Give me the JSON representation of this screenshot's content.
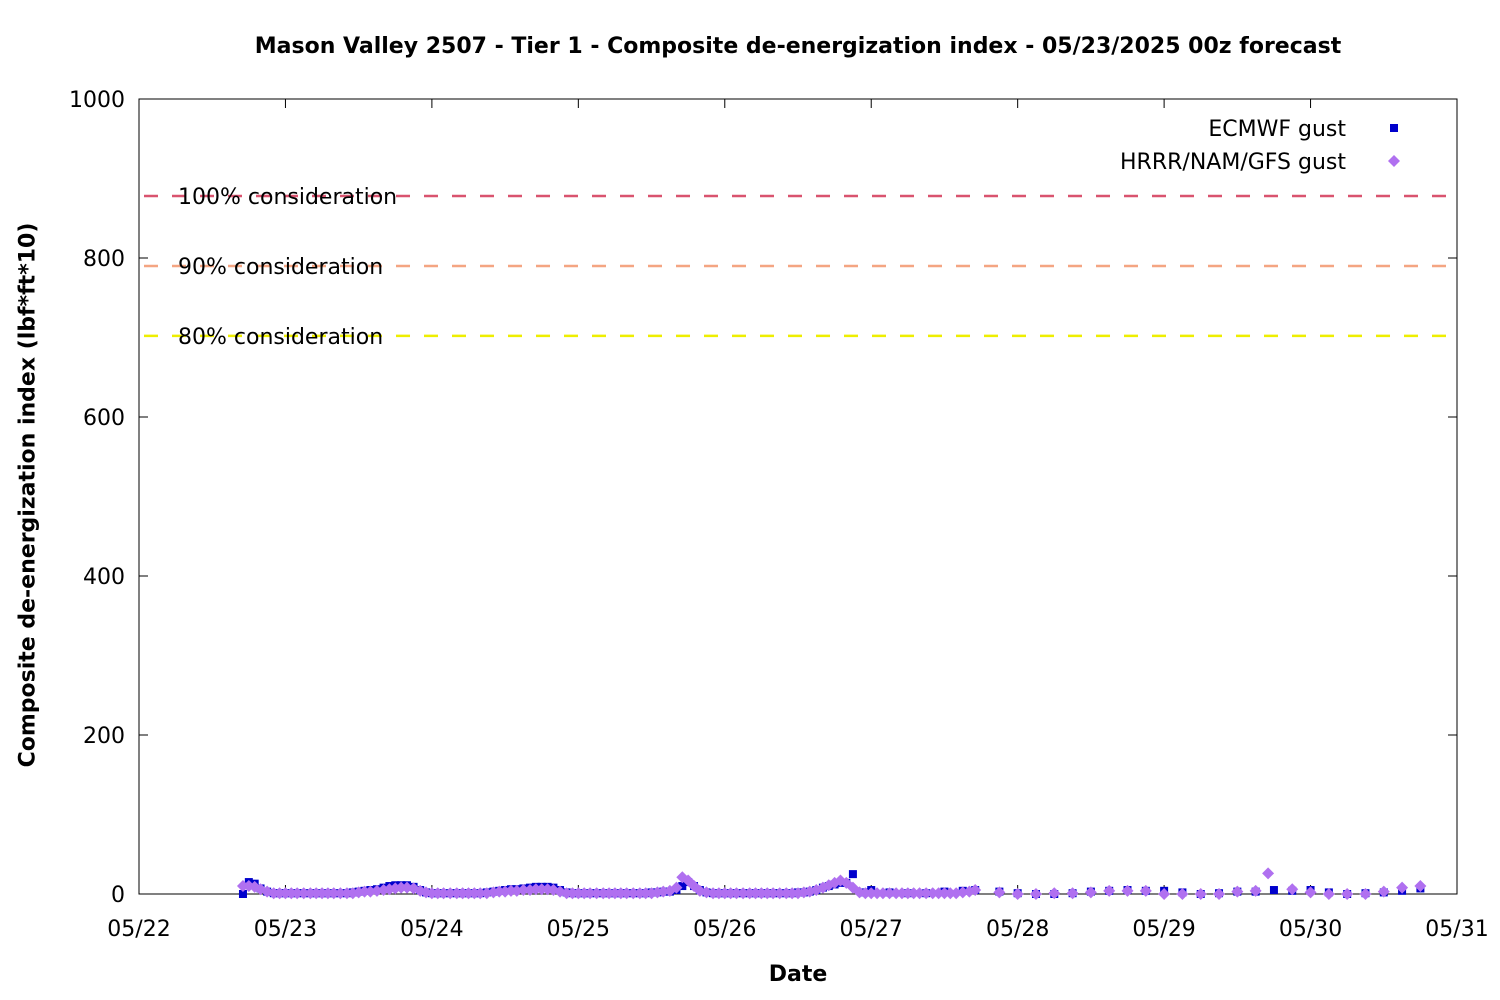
{
  "chart_data": {
    "type": "scatter",
    "title": "Mason Valley 2507 - Tier 1 - Composite de-energization index - 05/23/2025 00z forecast",
    "xlabel": "Date",
    "ylabel": "Composite de-energization index (lbf*ft*10)",
    "x_ticks": [
      "05/22",
      "05/23",
      "05/24",
      "05/25",
      "05/26",
      "05/27",
      "05/28",
      "05/29",
      "05/30",
      "05/31"
    ],
    "x_unit": "days since 05/22 00z",
    "xlim": [
      0,
      9
    ],
    "ylim": [
      0,
      1000
    ],
    "y_ticks": [
      0,
      200,
      400,
      600,
      800,
      1000
    ],
    "grid": false,
    "legend_position": "top-right",
    "thresholds": [
      {
        "label": "100% consideration",
        "value": 878,
        "color": "#d9536f"
      },
      {
        "label": "90% consideration",
        "value": 790,
        "color": "#f4a582"
      },
      {
        "label": "80% consideration",
        "value": 702,
        "color": "#eeee00"
      }
    ],
    "series": [
      {
        "name": "ECMWF gust",
        "marker": "square",
        "color": "#0000cc",
        "points": [
          [
            0.71,
            0
          ],
          [
            0.75,
            15
          ],
          [
            0.79,
            13
          ],
          [
            0.83,
            7
          ],
          [
            0.875,
            3
          ],
          [
            0.92,
            1
          ],
          [
            0.96,
            1
          ],
          [
            1.0,
            1
          ],
          [
            1.04,
            1
          ],
          [
            1.08,
            1
          ],
          [
            1.125,
            1
          ],
          [
            1.17,
            1
          ],
          [
            1.21,
            1
          ],
          [
            1.25,
            1
          ],
          [
            1.29,
            1
          ],
          [
            1.33,
            1
          ],
          [
            1.375,
            1
          ],
          [
            1.42,
            1
          ],
          [
            1.46,
            2
          ],
          [
            1.5,
            3
          ],
          [
            1.54,
            4
          ],
          [
            1.58,
            5
          ],
          [
            1.625,
            6
          ],
          [
            1.67,
            8
          ],
          [
            1.71,
            10
          ],
          [
            1.75,
            11
          ],
          [
            1.79,
            11
          ],
          [
            1.83,
            11
          ],
          [
            1.875,
            9
          ],
          [
            1.92,
            5
          ],
          [
            1.96,
            2
          ],
          [
            2.0,
            1
          ],
          [
            2.04,
            1
          ],
          [
            2.08,
            1
          ],
          [
            2.125,
            1
          ],
          [
            2.17,
            1
          ],
          [
            2.21,
            1
          ],
          [
            2.25,
            1
          ],
          [
            2.29,
            1
          ],
          [
            2.33,
            1
          ],
          [
            2.375,
            2
          ],
          [
            2.42,
            3
          ],
          [
            2.46,
            4
          ],
          [
            2.5,
            5
          ],
          [
            2.54,
            6
          ],
          [
            2.58,
            6
          ],
          [
            2.625,
            7
          ],
          [
            2.67,
            8
          ],
          [
            2.71,
            9
          ],
          [
            2.75,
            9
          ],
          [
            2.79,
            9
          ],
          [
            2.83,
            8
          ],
          [
            2.875,
            5
          ],
          [
            2.92,
            2
          ],
          [
            2.96,
            1
          ],
          [
            3.0,
            1
          ],
          [
            3.04,
            1
          ],
          [
            3.08,
            1
          ],
          [
            3.125,
            1
          ],
          [
            3.17,
            1
          ],
          [
            3.21,
            1
          ],
          [
            3.25,
            1
          ],
          [
            3.29,
            1
          ],
          [
            3.33,
            1
          ],
          [
            3.375,
            1
          ],
          [
            3.42,
            1
          ],
          [
            3.46,
            1
          ],
          [
            3.5,
            2
          ],
          [
            3.54,
            2
          ],
          [
            3.58,
            3
          ],
          [
            3.625,
            3
          ],
          [
            3.67,
            5
          ],
          [
            3.71,
            10
          ],
          [
            3.75,
            15
          ],
          [
            3.79,
            10
          ],
          [
            3.83,
            5
          ],
          [
            3.875,
            2
          ],
          [
            3.92,
            1
          ],
          [
            3.96,
            1
          ],
          [
            4.0,
            1
          ],
          [
            4.04,
            1
          ],
          [
            4.08,
            1
          ],
          [
            4.125,
            1
          ],
          [
            4.17,
            1
          ],
          [
            4.21,
            1
          ],
          [
            4.25,
            1
          ],
          [
            4.29,
            1
          ],
          [
            4.33,
            1
          ],
          [
            4.375,
            1
          ],
          [
            4.42,
            1
          ],
          [
            4.46,
            1
          ],
          [
            4.5,
            2
          ],
          [
            4.54,
            2
          ],
          [
            4.58,
            3
          ],
          [
            4.625,
            5
          ],
          [
            4.67,
            8
          ],
          [
            4.71,
            10
          ],
          [
            4.75,
            12
          ],
          [
            4.79,
            14
          ],
          [
            4.83,
            14
          ],
          [
            4.875,
            25
          ],
          [
            4.96,
            2
          ],
          [
            5.0,
            5
          ],
          [
            5.125,
            2
          ],
          [
            5.25,
            1
          ],
          [
            5.375,
            1
          ],
          [
            5.5,
            3
          ],
          [
            5.625,
            4
          ],
          [
            5.71,
            5
          ],
          [
            5.875,
            3
          ],
          [
            6.0,
            1
          ],
          [
            6.125,
            0
          ],
          [
            6.25,
            0
          ],
          [
            6.375,
            1
          ],
          [
            6.5,
            3
          ],
          [
            6.625,
            4
          ],
          [
            6.75,
            5
          ],
          [
            6.875,
            4
          ],
          [
            7.0,
            4
          ],
          [
            7.125,
            2
          ],
          [
            7.25,
            0
          ],
          [
            7.375,
            1
          ],
          [
            7.5,
            3
          ],
          [
            7.625,
            3
          ],
          [
            7.75,
            5
          ],
          [
            7.875,
            4
          ],
          [
            8.0,
            5
          ],
          [
            8.125,
            2
          ],
          [
            8.25,
            0
          ],
          [
            8.375,
            1
          ],
          [
            8.5,
            2
          ],
          [
            8.625,
            4
          ],
          [
            8.75,
            7
          ]
        ]
      },
      {
        "name": "HRRR/NAM/GFS gust",
        "marker": "diamond",
        "color": "#b070f0",
        "points": [
          [
            0.71,
            10
          ],
          [
            0.75,
            10
          ],
          [
            0.79,
            9
          ],
          [
            0.83,
            6
          ],
          [
            0.875,
            3
          ],
          [
            0.92,
            1
          ],
          [
            0.96,
            1
          ],
          [
            1.0,
            1
          ],
          [
            1.04,
            1
          ],
          [
            1.08,
            1
          ],
          [
            1.125,
            1
          ],
          [
            1.17,
            1
          ],
          [
            1.21,
            1
          ],
          [
            1.25,
            1
          ],
          [
            1.29,
            1
          ],
          [
            1.33,
            1
          ],
          [
            1.375,
            1
          ],
          [
            1.42,
            1
          ],
          [
            1.46,
            1
          ],
          [
            1.5,
            2
          ],
          [
            1.54,
            3
          ],
          [
            1.58,
            3
          ],
          [
            1.625,
            4
          ],
          [
            1.67,
            5
          ],
          [
            1.71,
            6
          ],
          [
            1.75,
            7
          ],
          [
            1.79,
            8
          ],
          [
            1.83,
            8
          ],
          [
            1.875,
            7
          ],
          [
            1.92,
            4
          ],
          [
            1.96,
            2
          ],
          [
            2.0,
            1
          ],
          [
            2.04,
            1
          ],
          [
            2.08,
            1
          ],
          [
            2.125,
            1
          ],
          [
            2.17,
            1
          ],
          [
            2.21,
            1
          ],
          [
            2.25,
            1
          ],
          [
            2.29,
            1
          ],
          [
            2.33,
            1
          ],
          [
            2.375,
            1
          ],
          [
            2.42,
            2
          ],
          [
            2.46,
            3
          ],
          [
            2.5,
            3
          ],
          [
            2.54,
            4
          ],
          [
            2.58,
            4
          ],
          [
            2.625,
            5
          ],
          [
            2.67,
            5
          ],
          [
            2.71,
            6
          ],
          [
            2.75,
            6
          ],
          [
            2.79,
            6
          ],
          [
            2.83,
            5
          ],
          [
            2.875,
            3
          ],
          [
            2.92,
            1
          ],
          [
            2.96,
            1
          ],
          [
            3.0,
            1
          ],
          [
            3.04,
            1
          ],
          [
            3.08,
            1
          ],
          [
            3.125,
            1
          ],
          [
            3.17,
            1
          ],
          [
            3.21,
            1
          ],
          [
            3.25,
            1
          ],
          [
            3.29,
            1
          ],
          [
            3.33,
            1
          ],
          [
            3.375,
            1
          ],
          [
            3.42,
            1
          ],
          [
            3.46,
            1
          ],
          [
            3.5,
            1
          ],
          [
            3.54,
            2
          ],
          [
            3.58,
            3
          ],
          [
            3.625,
            4
          ],
          [
            3.67,
            8
          ],
          [
            3.71,
            21
          ],
          [
            3.75,
            17
          ],
          [
            3.79,
            10
          ],
          [
            3.83,
            4
          ],
          [
            3.875,
            2
          ],
          [
            3.92,
            1
          ],
          [
            3.96,
            1
          ],
          [
            4.0,
            1
          ],
          [
            4.04,
            1
          ],
          [
            4.08,
            1
          ],
          [
            4.125,
            1
          ],
          [
            4.17,
            1
          ],
          [
            4.21,
            1
          ],
          [
            4.25,
            1
          ],
          [
            4.29,
            1
          ],
          [
            4.33,
            1
          ],
          [
            4.375,
            1
          ],
          [
            4.42,
            1
          ],
          [
            4.46,
            1
          ],
          [
            4.5,
            1
          ],
          [
            4.54,
            2
          ],
          [
            4.58,
            3
          ],
          [
            4.625,
            5
          ],
          [
            4.67,
            8
          ],
          [
            4.71,
            11
          ],
          [
            4.75,
            14
          ],
          [
            4.79,
            17
          ],
          [
            4.83,
            14
          ],
          [
            4.875,
            8
          ],
          [
            4.92,
            2
          ],
          [
            4.96,
            1
          ],
          [
            5.0,
            1
          ],
          [
            5.04,
            1
          ],
          [
            5.08,
            1
          ],
          [
            5.125,
            1
          ],
          [
            5.17,
            1
          ],
          [
            5.21,
            1
          ],
          [
            5.25,
            1
          ],
          [
            5.29,
            1
          ],
          [
            5.33,
            1
          ],
          [
            5.375,
            1
          ],
          [
            5.42,
            1
          ],
          [
            5.46,
            1
          ],
          [
            5.5,
            1
          ],
          [
            5.54,
            1
          ],
          [
            5.58,
            1
          ],
          [
            5.625,
            2
          ],
          [
            5.67,
            3
          ],
          [
            5.71,
            5
          ],
          [
            5.875,
            2
          ],
          [
            6.0,
            0
          ],
          [
            6.125,
            0
          ],
          [
            6.25,
            1
          ],
          [
            6.375,
            1
          ],
          [
            6.5,
            2
          ],
          [
            6.625,
            4
          ],
          [
            6.75,
            4
          ],
          [
            6.875,
            4
          ],
          [
            7.0,
            0
          ],
          [
            7.125,
            0
          ],
          [
            7.25,
            0
          ],
          [
            7.375,
            0
          ],
          [
            7.5,
            3
          ],
          [
            7.625,
            4
          ],
          [
            7.71,
            26
          ],
          [
            7.875,
            6
          ],
          [
            8.0,
            2
          ],
          [
            8.125,
            0
          ],
          [
            8.25,
            0
          ],
          [
            8.375,
            0
          ],
          [
            8.5,
            3
          ],
          [
            8.625,
            8
          ],
          [
            8.75,
            10
          ]
        ]
      }
    ]
  }
}
